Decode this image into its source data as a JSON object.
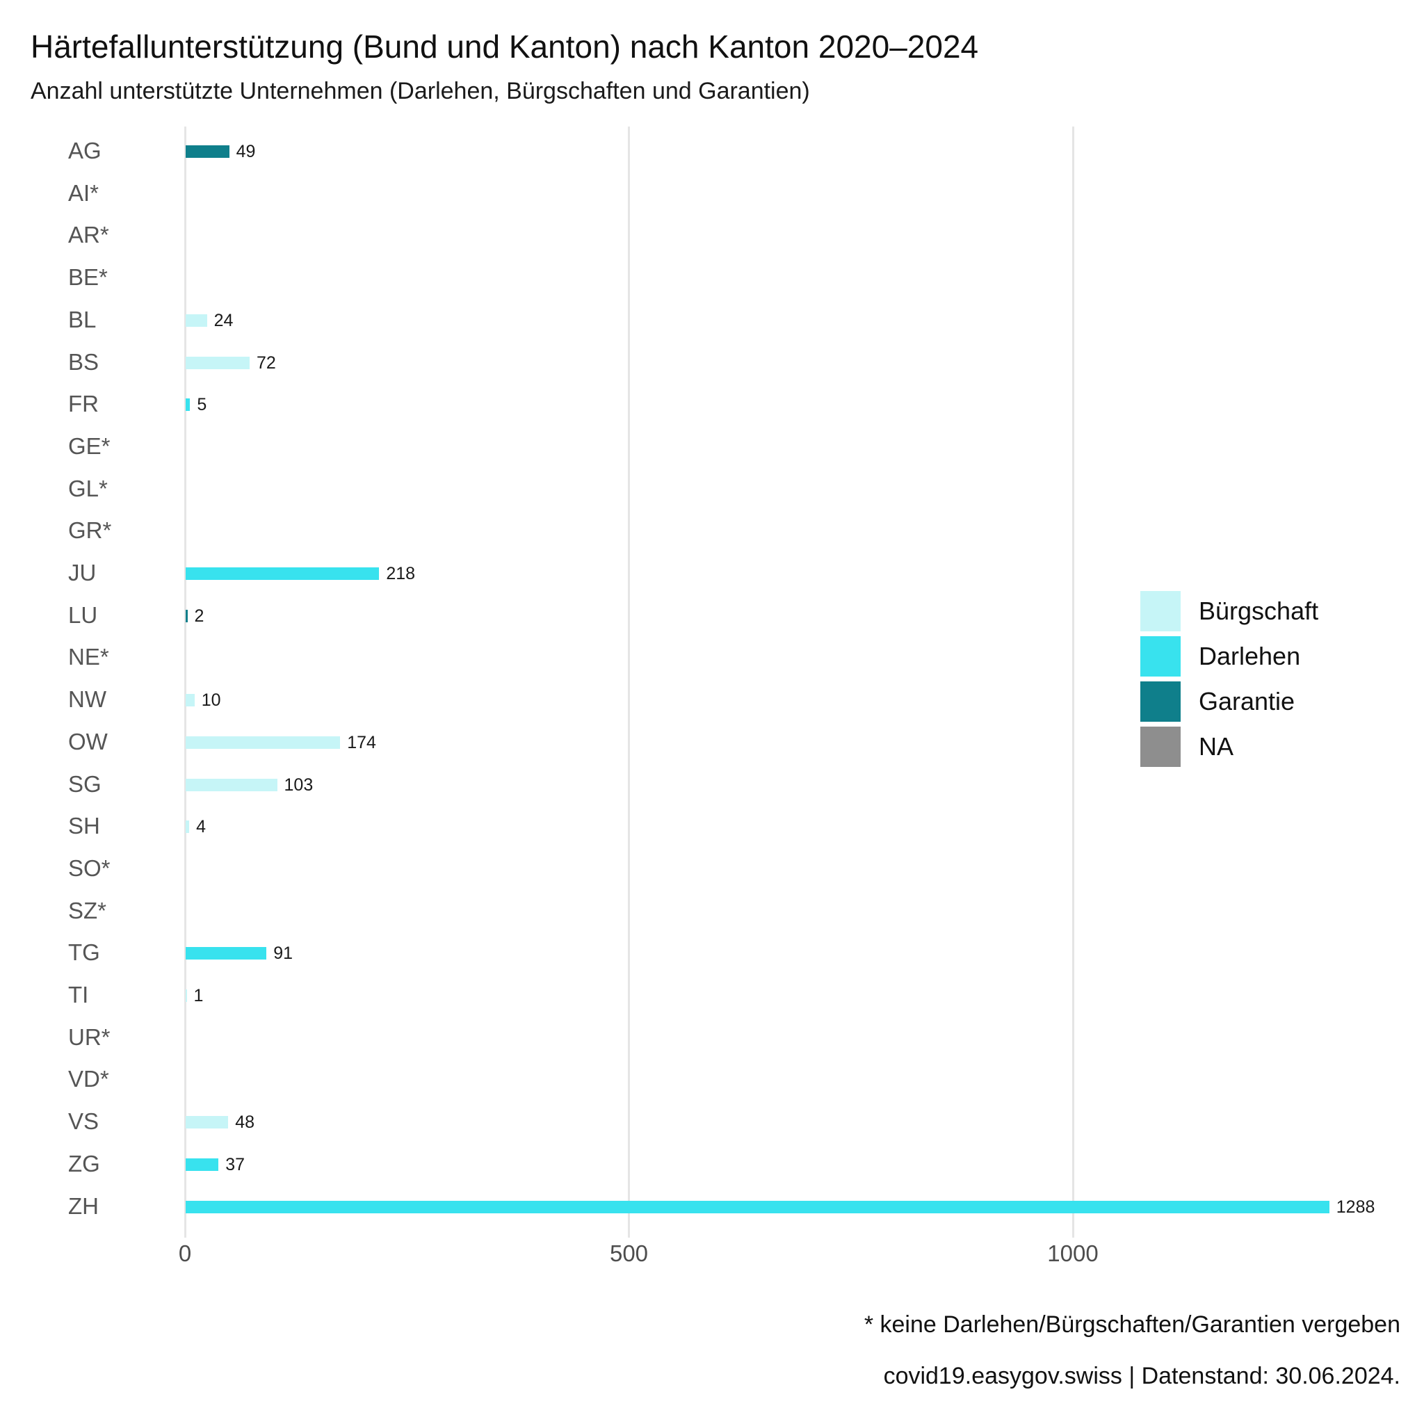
{
  "chart": {
    "title": "Härtefallunterstützung (Bund und Kanton) nach Kanton 2020–2024",
    "subtitle": "Anzahl unterstützte Unternehmen (Darlehen, Bürgschaften und Garantien)",
    "footnote": "* keine Darlehen/Bürgschaften/Garantien vergeben",
    "source": "covid19.easygov.swiss | Datenstand: 30.06.2024."
  },
  "chart_data": {
    "type": "bar",
    "orientation": "horizontal",
    "title": "Härtefallunterstützung (Bund und Kanton) nach Kanton 2020–2024",
    "subtitle": "Anzahl unterstützte Unternehmen (Darlehen, Bürgschaften und Garantien)",
    "xlabel": "",
    "ylabel": "",
    "xlim": [
      0,
      1400
    ],
    "x_ticks": [
      0,
      500,
      1000
    ],
    "grid": "vertical-only",
    "legend_position": "right",
    "categories": [
      "AG",
      "AI*",
      "AR*",
      "BE*",
      "BL",
      "BS",
      "FR",
      "GE*",
      "GL*",
      "GR*",
      "JU",
      "LU",
      "NE*",
      "NW",
      "OW",
      "SG",
      "SH",
      "SO*",
      "SZ*",
      "TG",
      "TI",
      "UR*",
      "VD*",
      "VS",
      "ZG",
      "ZH"
    ],
    "bars": [
      {
        "canton": "AG",
        "value": 49,
        "type": "Garantie"
      },
      {
        "canton": "AI*",
        "value": null,
        "type": null
      },
      {
        "canton": "AR*",
        "value": null,
        "type": null
      },
      {
        "canton": "BE*",
        "value": null,
        "type": null
      },
      {
        "canton": "BL",
        "value": 24,
        "type": "Bürgschaft"
      },
      {
        "canton": "BS",
        "value": 72,
        "type": "Bürgschaft"
      },
      {
        "canton": "FR",
        "value": 5,
        "type": "Darlehen"
      },
      {
        "canton": "GE*",
        "value": null,
        "type": null
      },
      {
        "canton": "GL*",
        "value": null,
        "type": null
      },
      {
        "canton": "GR*",
        "value": null,
        "type": null
      },
      {
        "canton": "JU",
        "value": 218,
        "type": "Darlehen"
      },
      {
        "canton": "LU",
        "value": 2,
        "type": "Garantie"
      },
      {
        "canton": "NE*",
        "value": null,
        "type": null
      },
      {
        "canton": "NW",
        "value": 10,
        "type": "Bürgschaft"
      },
      {
        "canton": "OW",
        "value": 174,
        "type": "Bürgschaft"
      },
      {
        "canton": "SG",
        "value": 103,
        "type": "Bürgschaft"
      },
      {
        "canton": "SH",
        "value": 4,
        "type": "Bürgschaft"
      },
      {
        "canton": "SO*",
        "value": null,
        "type": null
      },
      {
        "canton": "SZ*",
        "value": null,
        "type": null
      },
      {
        "canton": "TG",
        "value": 91,
        "type": "Darlehen"
      },
      {
        "canton": "TI",
        "value": 1,
        "type": "Bürgschaft"
      },
      {
        "canton": "UR*",
        "value": null,
        "type": null
      },
      {
        "canton": "VD*",
        "value": null,
        "type": null
      },
      {
        "canton": "VS",
        "value": 48,
        "type": "Bürgschaft"
      },
      {
        "canton": "ZG",
        "value": 37,
        "type": "Darlehen"
      },
      {
        "canton": "ZH",
        "value": 1288,
        "type": "Darlehen"
      }
    ],
    "legend": [
      {
        "label": "Bürgschaft",
        "color": "#c6f5f7"
      },
      {
        "label": "Darlehen",
        "color": "#38e2ee"
      },
      {
        "label": "Garantie",
        "color": "#0f7f8b"
      },
      {
        "label": "NA",
        "color": "#8e8e8e"
      }
    ],
    "colors": {
      "Bürgschaft": "#c6f5f7",
      "Darlehen": "#38e2ee",
      "Garantie": "#0f7f8b",
      "NA": "#8e8e8e"
    }
  }
}
